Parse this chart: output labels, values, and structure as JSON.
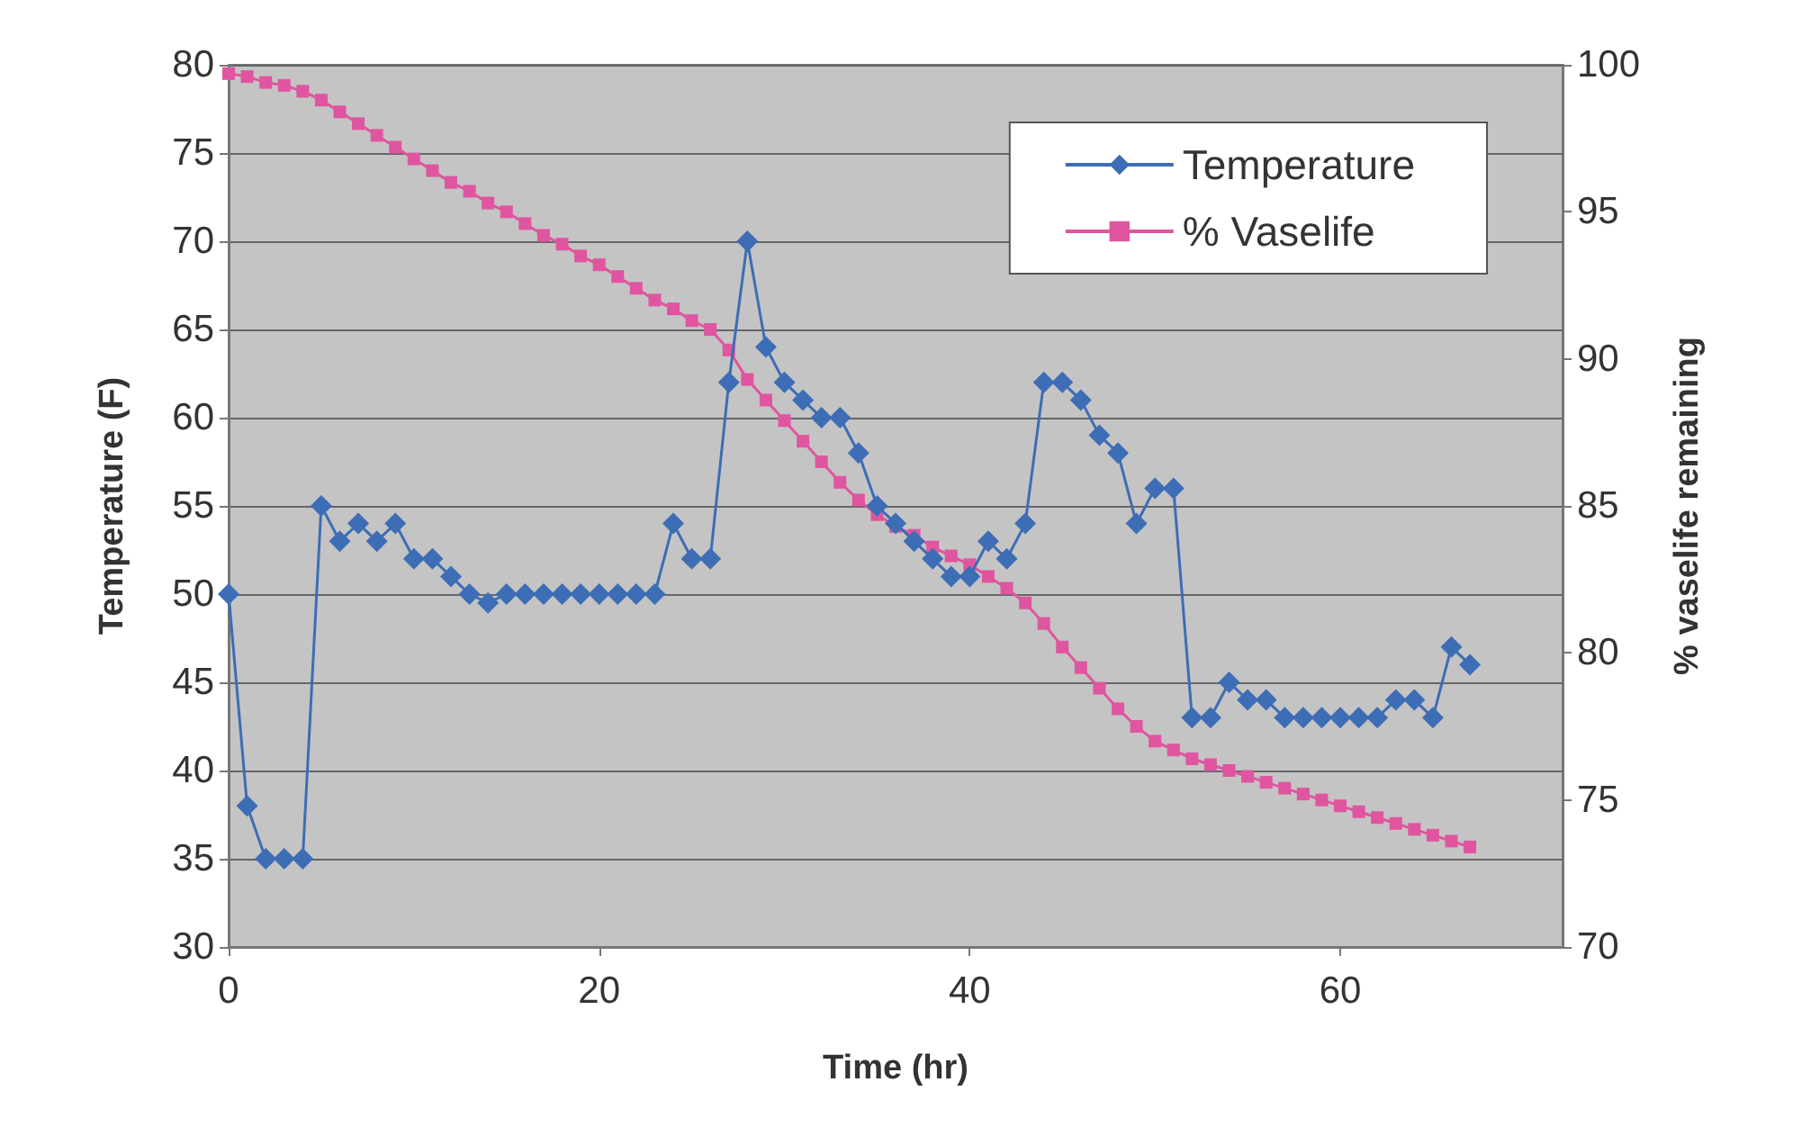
{
  "chart_data": {
    "type": "line",
    "xlabel": "Time (hr)",
    "ylabel": "Temperature (F)",
    "y2label": "% vaselife remaining",
    "x": [
      0,
      1,
      2,
      3,
      4,
      5,
      6,
      7,
      8,
      9,
      10,
      11,
      12,
      13,
      14,
      15,
      16,
      17,
      18,
      19,
      20,
      21,
      22,
      23,
      24,
      25,
      26,
      27,
      28,
      29,
      30,
      31,
      32,
      33,
      34,
      35,
      36,
      37,
      38,
      39,
      40,
      41,
      42,
      43,
      44,
      45,
      46,
      47,
      48,
      49,
      50,
      51,
      52,
      53,
      54,
      55,
      56,
      57,
      58,
      59,
      60,
      61,
      62,
      63,
      64,
      65,
      66,
      67
    ],
    "xlim": [
      0,
      72
    ],
    "xticks": [
      0,
      20,
      40,
      60
    ],
    "ylim": [
      30,
      80
    ],
    "yticks": [
      30,
      35,
      40,
      45,
      50,
      55,
      60,
      65,
      70,
      75,
      80
    ],
    "y2lim": [
      70,
      100
    ],
    "y2ticks": [
      70,
      75,
      80,
      85,
      90,
      95,
      100
    ],
    "grid": "y",
    "legend": "top right",
    "series": [
      {
        "name": "Temperature",
        "color": "#3d6db5",
        "marker": "diamond",
        "values": [
          50,
          38,
          35,
          35,
          35,
          55,
          53,
          54,
          53,
          54,
          52,
          52,
          51,
          50,
          49.5,
          50,
          50,
          50,
          50,
          50,
          50,
          50,
          50,
          50,
          54,
          52,
          52,
          62,
          70,
          64,
          62,
          61,
          60,
          60,
          58,
          55,
          54,
          53,
          52,
          51,
          51,
          53,
          52,
          54,
          62,
          62,
          61,
          59,
          58,
          54,
          56,
          56,
          43,
          43,
          45,
          44,
          44,
          43,
          43,
          43,
          43,
          43,
          43,
          44,
          44,
          43,
          47,
          46
        ]
      },
      {
        "name": "% Vaselife",
        "color": "#e0559f",
        "marker": "square",
        "axis": "y2",
        "values": [
          99.7,
          99.6,
          99.4,
          99.3,
          99.1,
          98.8,
          98.4,
          98.0,
          97.6,
          97.2,
          96.8,
          96.4,
          96.0,
          95.7,
          95.3,
          95.0,
          94.6,
          94.2,
          93.9,
          93.5,
          93.2,
          92.8,
          92.4,
          92.0,
          91.7,
          91.3,
          91.0,
          90.3,
          89.3,
          88.6,
          87.9,
          87.2,
          86.5,
          85.8,
          85.2,
          84.7,
          84.3,
          84.0,
          83.6,
          83.3,
          83.0,
          82.6,
          82.2,
          81.7,
          81.0,
          80.2,
          79.5,
          78.8,
          78.1,
          77.5,
          77.0,
          76.7,
          76.4,
          76.2,
          76.0,
          75.8,
          75.6,
          75.4,
          75.2,
          75.0,
          74.8,
          74.6,
          74.4,
          74.2,
          74.0,
          73.8,
          73.6,
          73.4
        ]
      }
    ]
  }
}
